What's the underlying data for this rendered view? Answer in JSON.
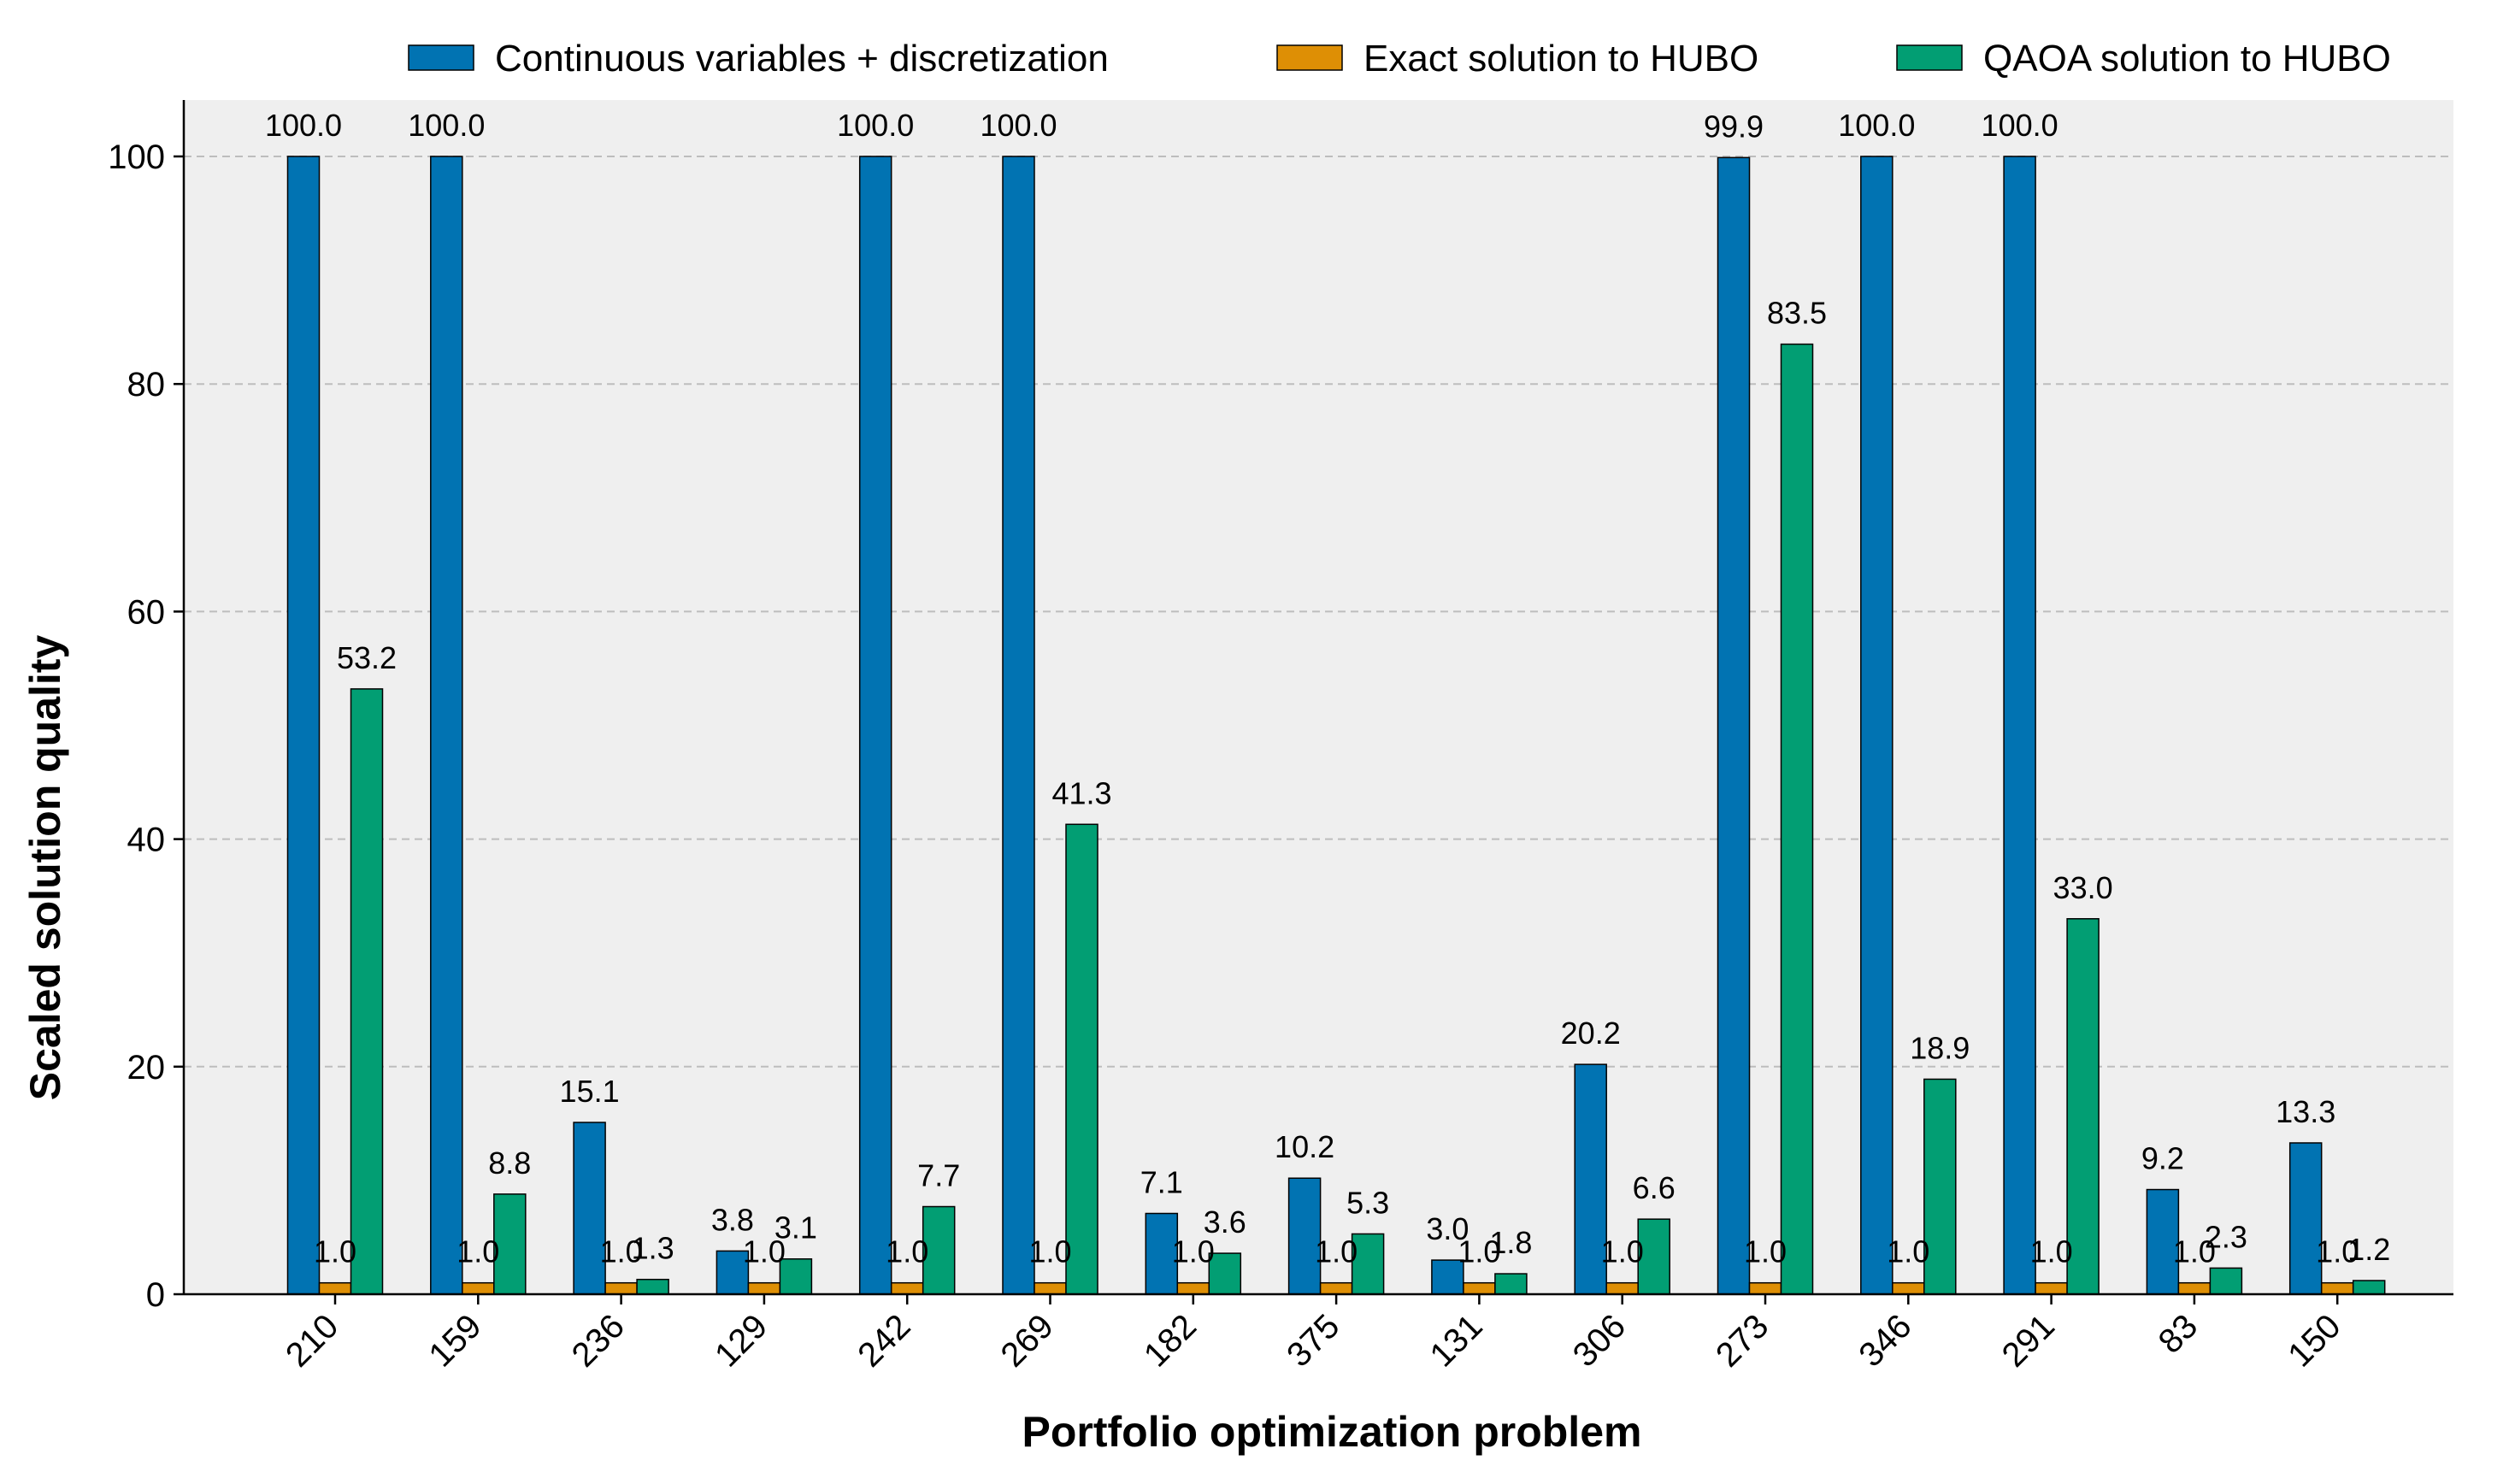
{
  "chart_data": {
    "type": "bar",
    "xlabel": "Portfolio optimization problem",
    "ylabel": "Scaled solution quality",
    "ylim": [
      0,
      105
    ],
    "yticks": [
      0,
      20,
      40,
      60,
      80,
      100
    ],
    "grid": "y-dashed",
    "legend_position": "top",
    "categories": [
      "210",
      "159",
      "236",
      "129",
      "242",
      "269",
      "182",
      "375",
      "131",
      "306",
      "273",
      "346",
      "291",
      "83",
      "150"
    ],
    "series": [
      {
        "name": "Continuous variables + discretization",
        "color": "#0173b2",
        "values": [
          100.0,
          100.0,
          15.1,
          3.8,
          100.0,
          100.0,
          7.1,
          10.2,
          3.0,
          20.2,
          99.9,
          100.0,
          100.0,
          9.2,
          13.3
        ],
        "labels": [
          "100.0",
          "100.0",
          "15.1",
          "3.8",
          "100.0",
          "100.0",
          "7.1",
          "10.2",
          "3.0",
          "20.2",
          "99.9",
          "100.0",
          "100.0",
          "9.2",
          "13.3"
        ]
      },
      {
        "name": "Exact solution to HUBO",
        "color": "#de8f05",
        "values": [
          1.0,
          1.0,
          1.0,
          1.0,
          1.0,
          1.0,
          1.0,
          1.0,
          1.0,
          1.0,
          1.0,
          1.0,
          1.0,
          1.0,
          1.0
        ],
        "labels": [
          "1.0",
          "1.0",
          "1.0",
          "1.0",
          "1.0",
          "1.0",
          "1.0",
          "1.0",
          "1.0",
          "1.0",
          "1.0",
          "1.0",
          "1.0",
          "1.0",
          "1.0"
        ]
      },
      {
        "name": "QAOA solution to HUBO",
        "color": "#029e73",
        "values": [
          53.2,
          8.8,
          1.3,
          3.1,
          7.7,
          41.3,
          3.6,
          5.3,
          1.8,
          6.6,
          83.5,
          18.9,
          33.0,
          2.3,
          1.2
        ],
        "labels": [
          "53.2",
          "8.8",
          "1.3",
          "3.1",
          "7.7",
          "41.3",
          "3.6",
          "5.3",
          "1.8",
          "6.6",
          "83.5",
          "18.9",
          "33.0",
          "2.3",
          "1.2"
        ]
      }
    ]
  }
}
